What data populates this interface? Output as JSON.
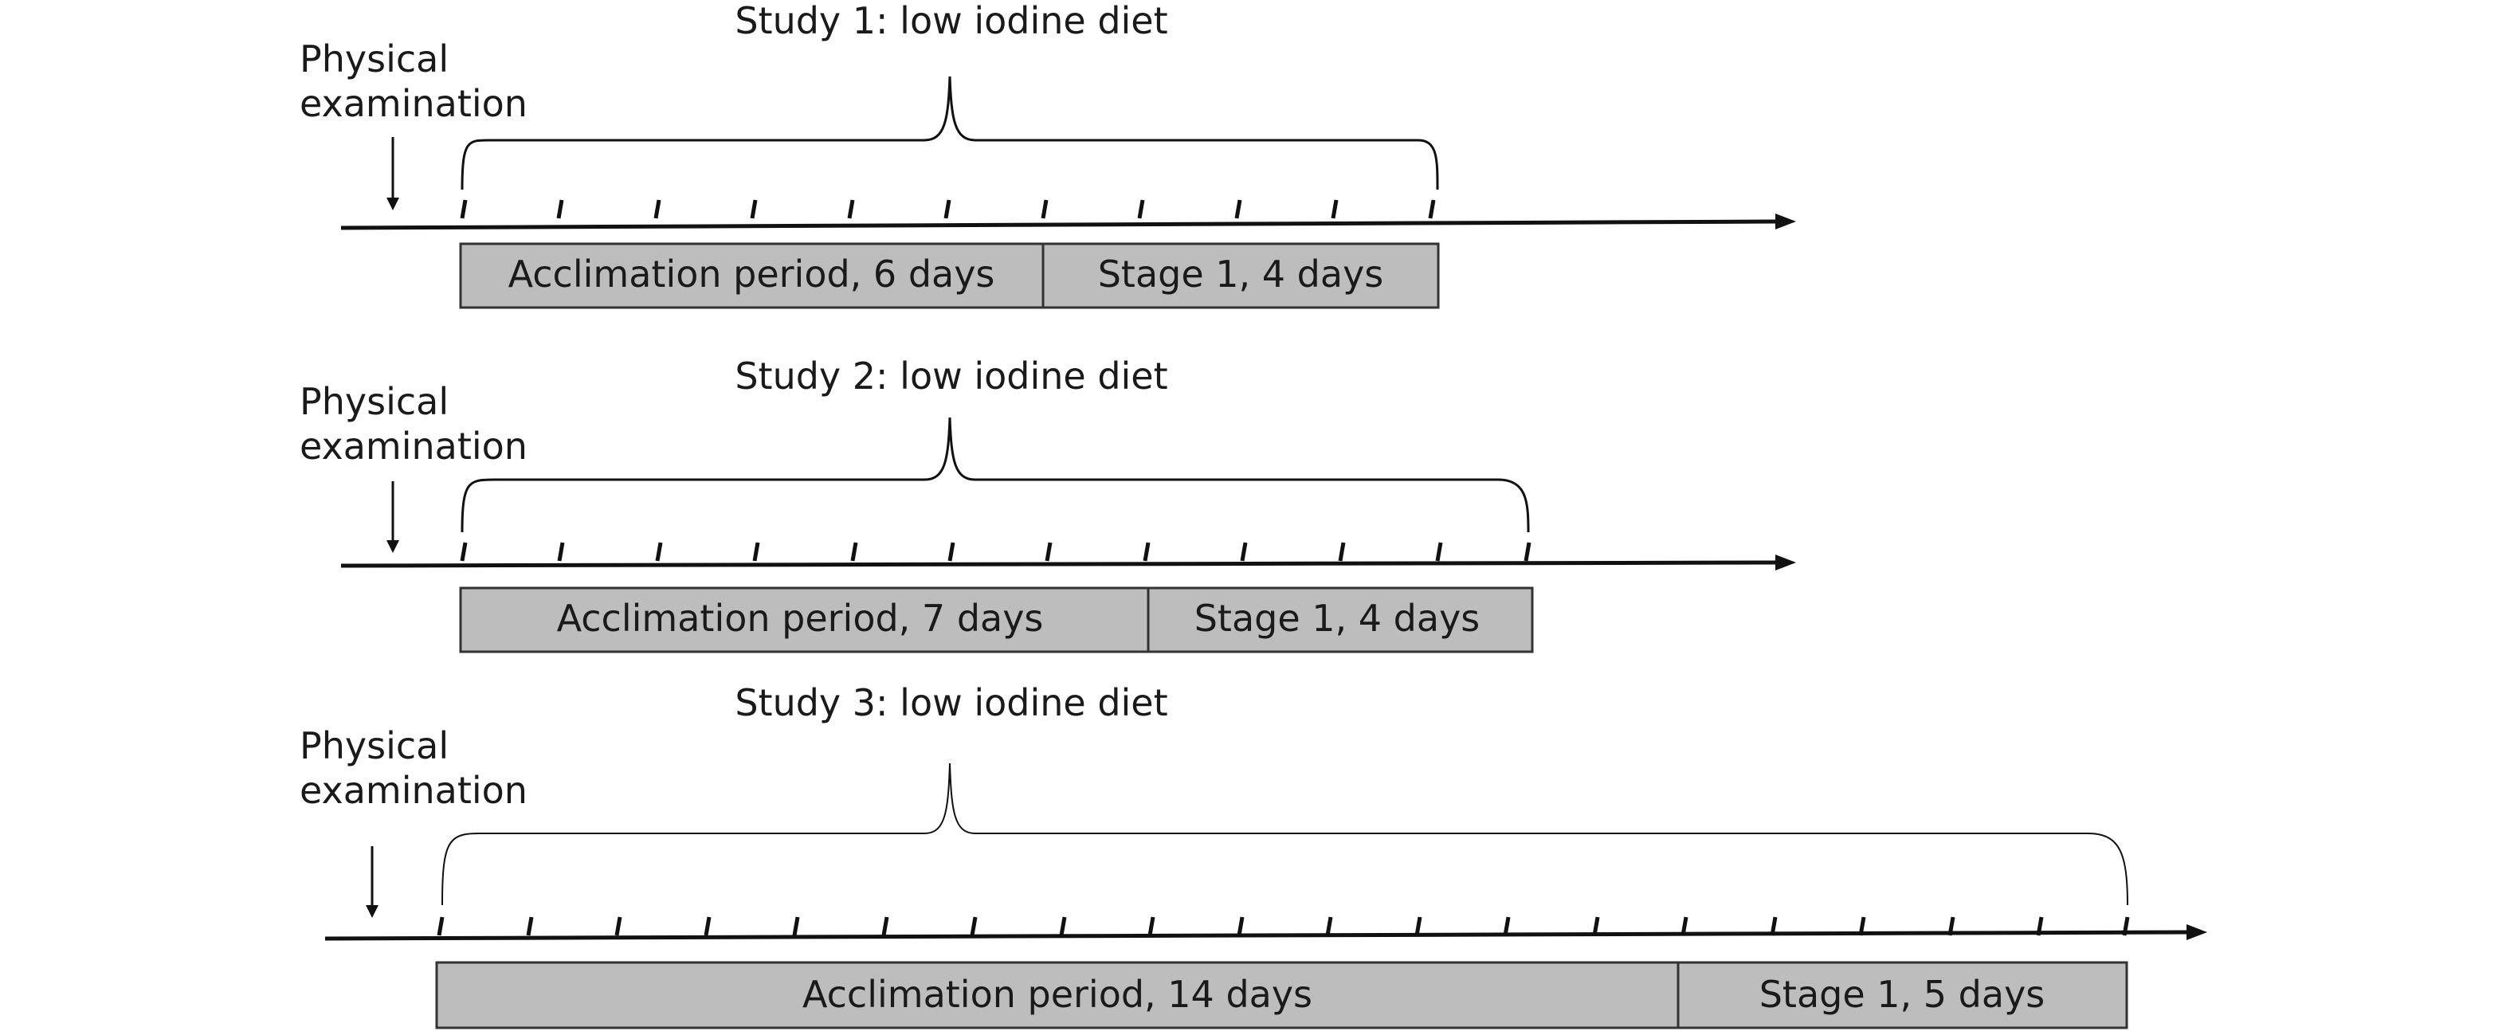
{
  "studies": [
    {
      "title": "Study 1: low iodine diet",
      "exam_label_line1": "Physical",
      "exam_label_line2": "examination",
      "periods": [
        {
          "label": "Acclimation period, 6 days",
          "days": 6
        },
        {
          "label": "Stage 1, 4 days",
          "days": 4
        }
      ]
    },
    {
      "title": "Study 2: low iodine diet",
      "exam_label_line1": "Physical",
      "exam_label_line2": "examination",
      "periods": [
        {
          "label": "Acclimation period, 7 days",
          "days": 7
        },
        {
          "label": "Stage 1, 4 days",
          "days": 4
        }
      ]
    },
    {
      "title": "Study 3: low iodine diet",
      "exam_label_line1": "Physical",
      "exam_label_line2": "examination",
      "periods": [
        {
          "label": "Acclimation period, 14 days",
          "days": 14
        },
        {
          "label": "Stage 1, 5 days",
          "days": 5
        }
      ]
    }
  ],
  "colors": {
    "box_fill": "#bdbdbd",
    "box_stroke": "#333333",
    "line": "#111111",
    "text": "#1a1a1a"
  }
}
